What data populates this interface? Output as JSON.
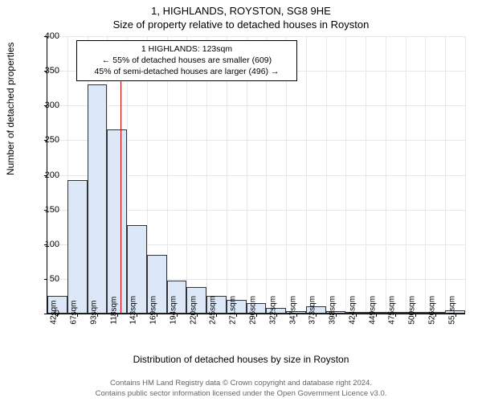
{
  "title_main": "1, HIGHLANDS, ROYSTON, SG8 9HE",
  "title_sub": "Size of property relative to detached houses in Royston",
  "ylabel": "Number of detached properties",
  "xlabel": "Distribution of detached houses by size in Royston",
  "chart": {
    "type": "histogram",
    "ylim": [
      0,
      400
    ],
    "ytick_step": 50,
    "yticks": [
      0,
      50,
      100,
      150,
      200,
      250,
      300,
      350,
      400
    ],
    "categories": [
      "42sqm",
      "67sqm",
      "93sqm",
      "118sqm",
      "143sqm",
      "169sqm",
      "194sqm",
      "220sqm",
      "245sqm",
      "271sqm",
      "296sqm",
      "322sqm",
      "347sqm",
      "373sqm",
      "398sqm",
      "424sqm",
      "449sqm",
      "475sqm",
      "500sqm",
      "526sqm",
      "551sqm"
    ],
    "values": [
      25,
      192,
      330,
      265,
      127,
      85,
      48,
      38,
      26,
      20,
      15,
      8,
      4,
      10,
      3,
      2,
      0,
      0,
      0,
      0,
      5
    ],
    "bar_fill": "#dce8f7",
    "bar_border": "#333333",
    "bg_color": "#ffffff",
    "grid_color": "#e8e8e8",
    "label_fontsize": 12,
    "tick_fontsize": 11,
    "title_fontsize": 13
  },
  "annotation": {
    "line1": "1 HIGHLANDS: 123sqm",
    "line2": "← 55% of detached houses are smaller (609)",
    "line3": "45% of semi-detached houses are larger (496) →",
    "marker_value_x": 123,
    "marker_color": "#cc0000",
    "box_border": "#000000",
    "box_bg": "#ffffff"
  },
  "footer": {
    "line1": "Contains HM Land Registry data © Crown copyright and database right 2024.",
    "line2": "Contains public sector information licensed under the Open Government Licence v3.0."
  }
}
